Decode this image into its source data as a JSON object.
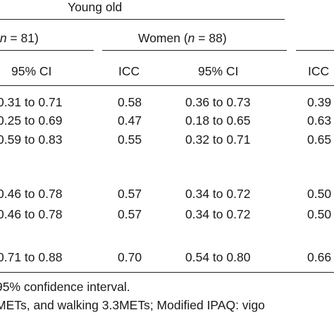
{
  "group_header": "Young old",
  "men_header": {
    "prefix": "(",
    "n_italic": "n",
    "suffix": " = 81)"
  },
  "women_header": {
    "prefix": "Women (",
    "n_italic": "n",
    "suffix": " = 88)"
  },
  "column_labels": {
    "men_ci": "95% CI",
    "women_icc": "ICC",
    "women_ci": "95% CI",
    "next_icc": "ICC"
  },
  "rows": [
    {
      "men_ci": "0.31 to 0.71",
      "women_icc": "0.58",
      "women_ci": "0.36 to 0.73",
      "next_icc": "0.39"
    },
    {
      "men_ci": "0.25 to 0.69",
      "women_icc": "0.47",
      "women_ci": "0.18 to 0.65",
      "next_icc": "0.63"
    },
    {
      "men_ci": "0.59 to 0.83",
      "women_icc": "0.55",
      "women_ci": "0.32 to 0.71",
      "next_icc": "0.65"
    },
    {
      "men_ci": "0.46 to 0.78",
      "women_icc": "0.57",
      "women_ci": "0.34 to 0.72",
      "next_icc": "0.50"
    },
    {
      "men_ci": "0.46 to 0.78",
      "women_icc": "0.57",
      "women_ci": "0.34 to 0.72",
      "next_icc": "0.50"
    },
    {
      "men_ci": "0.71 to 0.88",
      "women_icc": "0.70",
      "women_ci": "0.54 to 0.80",
      "next_icc": "0.66"
    }
  ],
  "footnotes": [
    "95% confidence interval.",
    "METs, and walking 3.3METs; Modified IPAQ: vigo"
  ]
}
